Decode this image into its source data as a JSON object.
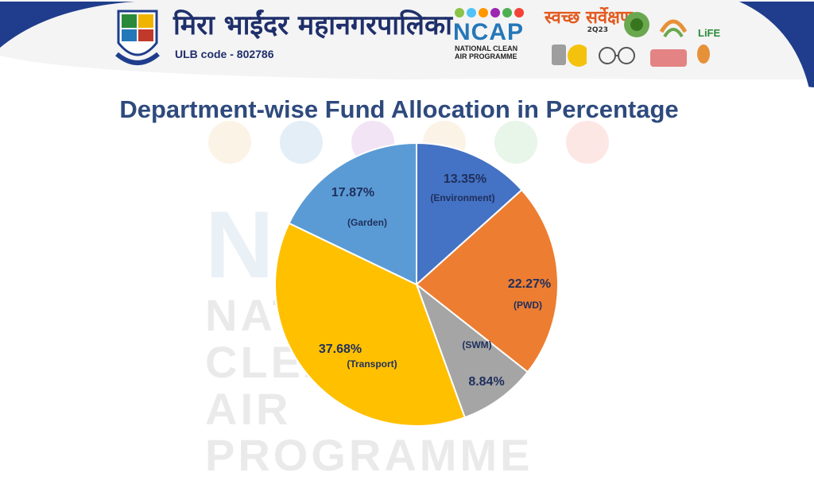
{
  "header": {
    "org_name": "मिरा भाईंदर महानगरपालिका",
    "ulb_code": "ULB code - 802786",
    "ncap_word": "NCAP",
    "ncap_line1": "NATIONAL CLEAN",
    "ncap_line2": "AIR PROGRAMME",
    "svachh_text": "स्वच्छ सर्वेक्षण",
    "svachh_year": "2Q23",
    "life_text": "LiFE"
  },
  "slide": {
    "title": "Department-wise Fund Allocation in Percentage"
  },
  "watermark": {
    "big": "NCAP",
    "line1": "NATIONAL CLEAN",
    "line2": "AIR PROGRAMME"
  },
  "colors": {
    "environment": "#4472C4",
    "pwd": "#ED7D31",
    "swm": "#A5A5A5",
    "transport": "#FFC000",
    "garden": "#5B9BD5"
  },
  "chart_data": {
    "type": "pie",
    "title": "Department-wise Fund Allocation in Percentage",
    "slices": [
      {
        "label": "Environment",
        "value": 13.35,
        "pct_text": "13.35%",
        "cat_text": "(Environment)",
        "color": "#4472C4"
      },
      {
        "label": "PWD",
        "value": 22.27,
        "pct_text": "22.27%",
        "cat_text": "(PWD)",
        "color": "#ED7D31"
      },
      {
        "label": "SWM",
        "value": 8.84,
        "pct_text": "8.84%",
        "cat_text": "(SWM)",
        "color": "#A5A5A5"
      },
      {
        "label": "Transport",
        "value": 37.68,
        "pct_text": "37.68%",
        "cat_text": "(Transport)",
        "color": "#FFC000"
      },
      {
        "label": "Garden",
        "value": 17.87,
        "pct_text": "17.87%",
        "cat_text": "(Garden)",
        "color": "#5B9BD5"
      }
    ],
    "start_angle": "12 o'clock",
    "direction": "clockwise",
    "legend": "none"
  }
}
